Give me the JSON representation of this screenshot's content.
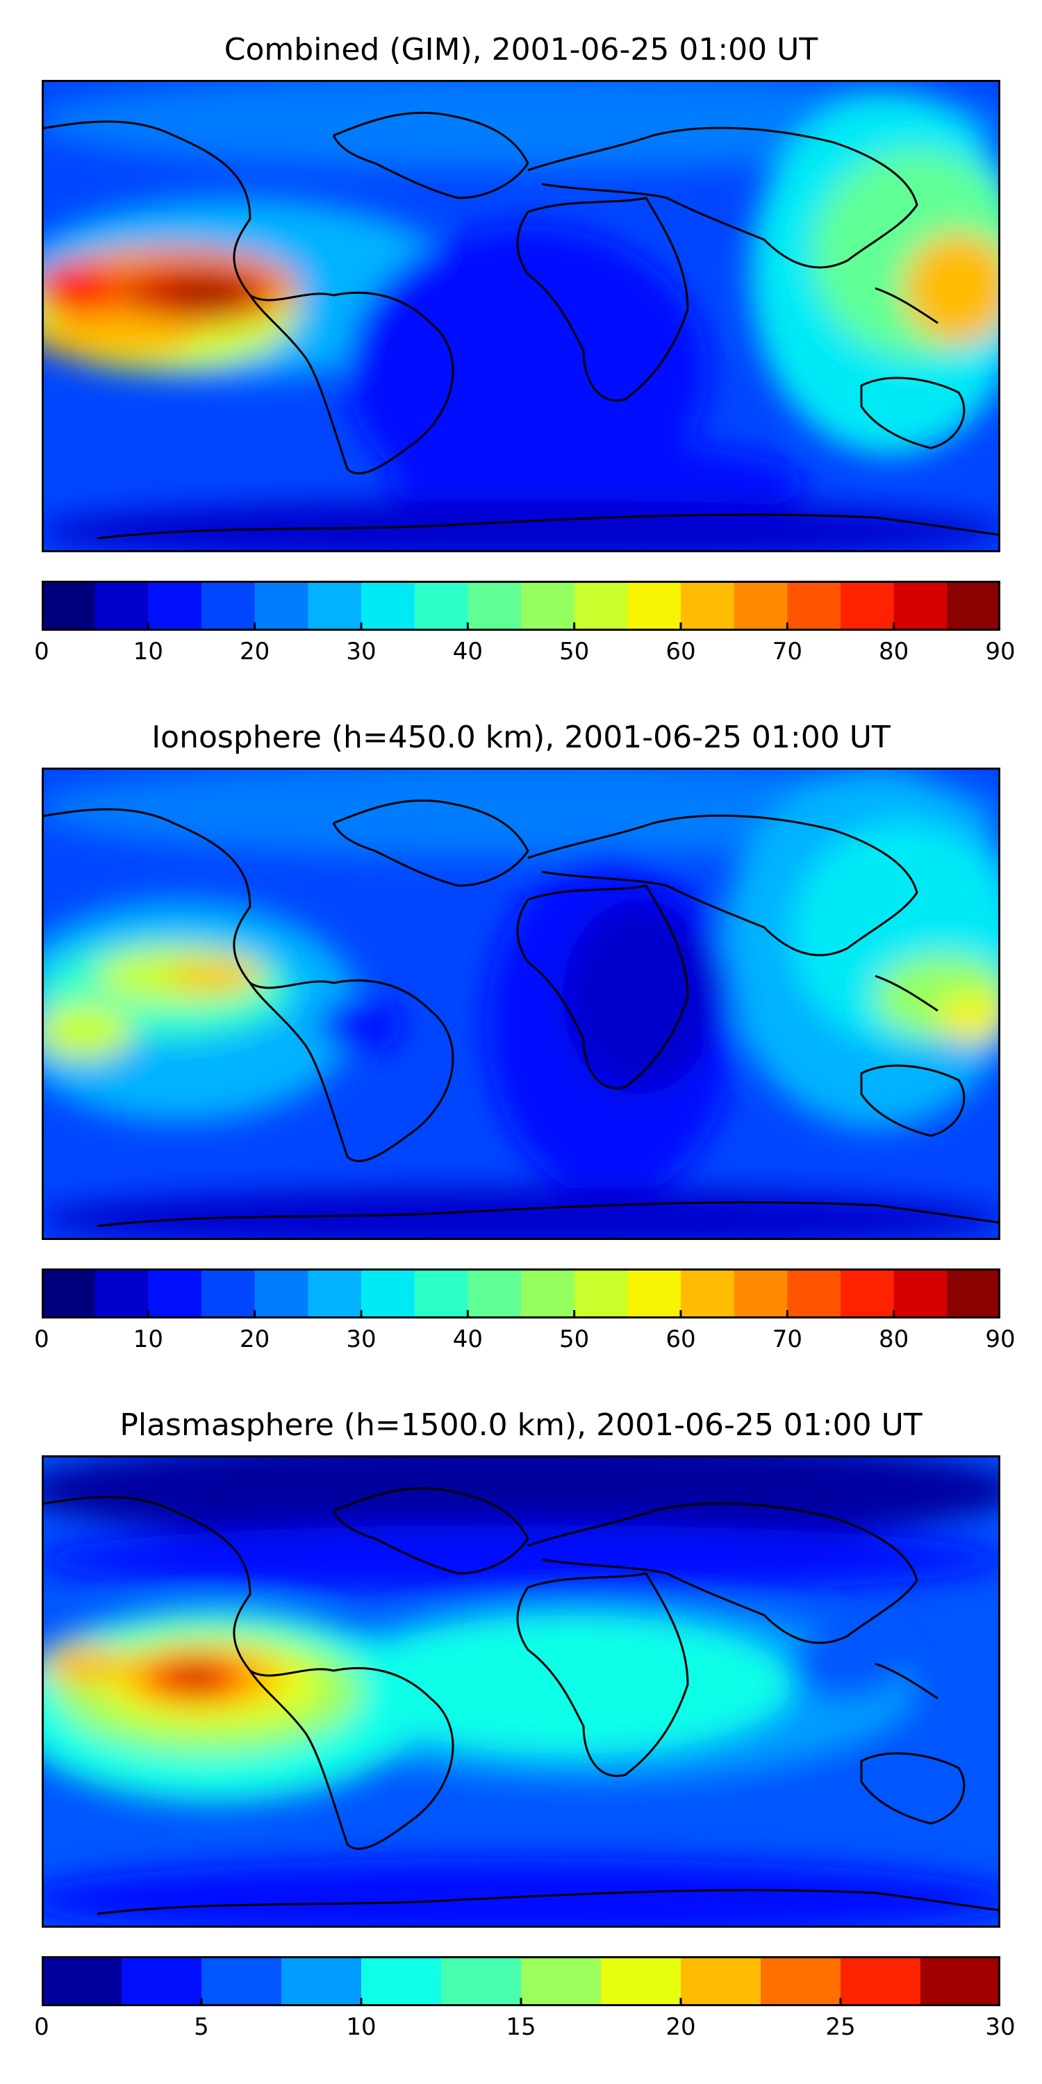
{
  "panels": [
    {
      "title": "Combined (GIM), 2001-06-25 01:00 UT",
      "colorbar": {
        "ticks": [
          "0",
          "10",
          "20",
          "30",
          "40",
          "50",
          "60",
          "70",
          "80",
          "90"
        ],
        "min": 0,
        "max": 90,
        "levels": 18,
        "colors": [
          "#00007f",
          "#0000cc",
          "#0010ff",
          "#0046ff",
          "#007cff",
          "#00b2ff",
          "#00eaf6",
          "#2dffc9",
          "#60ff96",
          "#96ff60",
          "#c9ff2d",
          "#f6f400",
          "#ffbc00",
          "#ff8a00",
          "#ff5500",
          "#ff2200",
          "#d40000",
          "#8b0000"
        ]
      }
    },
    {
      "title": "Ionosphere  (h=450.0 km), 2001-06-25 01:00 UT",
      "colorbar": {
        "ticks": [
          "0",
          "10",
          "20",
          "30",
          "40",
          "50",
          "60",
          "70",
          "80",
          "90"
        ],
        "min": 0,
        "max": 90,
        "levels": 18,
        "colors": [
          "#00007f",
          "#0000cc",
          "#0010ff",
          "#0046ff",
          "#007cff",
          "#00b2ff",
          "#00eaf6",
          "#2dffc9",
          "#60ff96",
          "#96ff60",
          "#c9ff2d",
          "#f6f400",
          "#ffbc00",
          "#ff8a00",
          "#ff5500",
          "#ff2200",
          "#d40000",
          "#8b0000"
        ]
      }
    },
    {
      "title": "Plasmasphere (h=1500.0 km), 2001-06-25 01:00 UT",
      "colorbar": {
        "ticks": [
          "0",
          "5",
          "10",
          "15",
          "20",
          "25",
          "30"
        ],
        "min": 0,
        "max": 30,
        "levels": 12,
        "colors": [
          "#00009f",
          "#0010ff",
          "#0056ff",
          "#009cff",
          "#10ffe8",
          "#48ffb0",
          "#9cff5c",
          "#e8ff10",
          "#ffbc00",
          "#ff7000",
          "#ff2400",
          "#a00000"
        ]
      }
    }
  ]
}
